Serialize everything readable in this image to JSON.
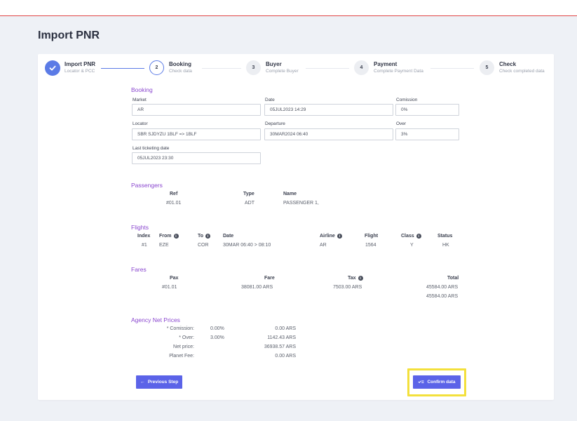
{
  "page": {
    "title": "Import PNR"
  },
  "steps": [
    {
      "number": "✓",
      "title": "Import PNR",
      "subtitle": "Locator & PCC"
    },
    {
      "number": "2",
      "title": "Booking",
      "subtitle": "Check data"
    },
    {
      "number": "3",
      "title": "Buyer",
      "subtitle": "Complete Buyer"
    },
    {
      "number": "4",
      "title": "Payment",
      "subtitle": "Complete Payment Data"
    },
    {
      "number": "5",
      "title": "Check",
      "subtitle": "Check completed data"
    }
  ],
  "booking": {
    "title": "Booking",
    "market": {
      "label": "Market",
      "value": "AR"
    },
    "date": {
      "label": "Date",
      "value": "05JUL2023 14:29"
    },
    "comission": {
      "label": "Comission",
      "value": "0%"
    },
    "locator": {
      "label": "Locator",
      "value": "SBR SJDYZU 1BLF => 1BLF"
    },
    "departure": {
      "label": "Departure",
      "value": "30MAR2024 06:40"
    },
    "over": {
      "label": "Over",
      "value": "3%"
    },
    "last_ticketing": {
      "label": "Last ticketing date",
      "value": "05JUL2023 23:30"
    }
  },
  "passengers": {
    "title": "Passengers",
    "headers": {
      "ref": "Ref",
      "type": "Type",
      "name": "Name"
    },
    "rows": [
      {
        "ref": "#01.01",
        "type": "ADT",
        "name": "PASSENGER 1,"
      }
    ]
  },
  "flights": {
    "title": "Flights",
    "headers": {
      "index": "Index",
      "from": "From",
      "to": "To",
      "date": "Date",
      "airline": "Airline",
      "flight": "Flight",
      "class": "Class",
      "status": "Status"
    },
    "rows": [
      {
        "index": "#1",
        "from": "EZE",
        "to": "COR",
        "date": "30MAR 06:40 > 08:10",
        "airline": "AR",
        "flight": "1564",
        "class": "Y",
        "status": "HK"
      }
    ]
  },
  "fares": {
    "title": "Fares",
    "headers": {
      "pax": "Pax",
      "fare": "Fare",
      "tax": "Tax",
      "total": "Total"
    },
    "rows": [
      {
        "pax": "#01.01",
        "fare": "38081.00 ARS",
        "tax": "7503.00 ARS",
        "total": "45584.00 ARS"
      }
    ],
    "grand_total": "45584.00 ARS"
  },
  "agency": {
    "title": "Agency Net Prices",
    "rows": [
      {
        "label": "* Comission:",
        "pct": "0.00%",
        "amount": "0.00 ARS"
      },
      {
        "label": "* Over:",
        "pct": "3.00%",
        "amount": "1142.43 ARS"
      },
      {
        "label": "Net price:",
        "pct": "",
        "amount": "36938.57 ARS"
      },
      {
        "label": "Planet Fee:",
        "pct": "",
        "amount": "0.00 ARS"
      }
    ]
  },
  "actions": {
    "previous": "Previous Step",
    "confirm": "Confirm data"
  },
  "colors": {
    "accent": "#5b63e8",
    "section": "#8a47cf",
    "step_done": "#5b7be6",
    "highlight": "#f3e03c"
  }
}
